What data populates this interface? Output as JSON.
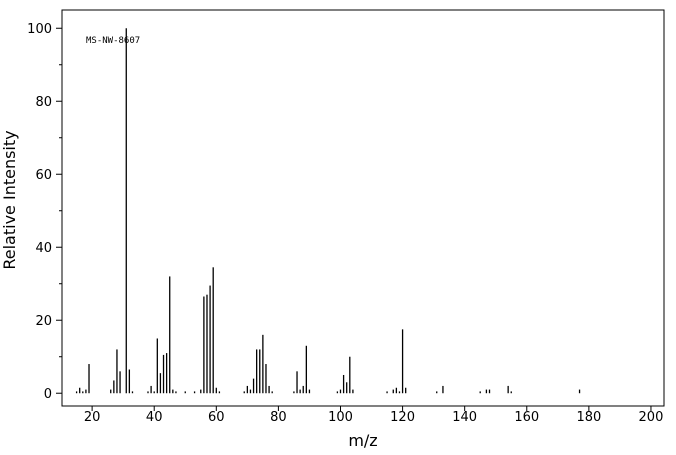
{
  "chart_data": {
    "type": "bar",
    "annotation": "MS-NW-8607",
    "xlabel": "m/z",
    "ylabel": "Relative Intensity",
    "color": "#000000",
    "x": [
      15,
      16,
      17,
      18,
      19,
      26,
      27,
      28,
      29,
      31,
      32,
      33,
      38,
      39,
      40,
      41,
      42,
      43,
      44,
      45,
      46,
      47,
      50,
      53,
      55,
      56,
      57,
      58,
      59,
      60,
      61,
      69,
      70,
      71,
      72,
      73,
      74,
      75,
      76,
      77,
      78,
      85,
      86,
      87,
      88,
      89,
      90,
      99,
      100,
      101,
      102,
      103,
      104,
      115,
      117,
      118,
      119,
      120,
      121,
      131,
      133,
      145,
      147,
      148,
      154,
      155,
      177
    ],
    "values": [
      0.5,
      1.5,
      0.5,
      1,
      8,
      1,
      3.5,
      12,
      6,
      100,
      6.5,
      0.5,
      0.5,
      2,
      0.5,
      15,
      5.5,
      10.5,
      11,
      32,
      1,
      0.5,
      0.5,
      0.5,
      1,
      26.5,
      27,
      29.5,
      34.5,
      1.5,
      0.5,
      0.5,
      2,
      1,
      4,
      12,
      12,
      16,
      8,
      2,
      0.5,
      0.5,
      6,
      1,
      2,
      13,
      1,
      0.5,
      1,
      5,
      3,
      10,
      1,
      0.5,
      1,
      1.5,
      0.5,
      17.5,
      1.5,
      0.5,
      2,
      0.5,
      1,
      1,
      2,
      0.5,
      1
    ],
    "xlim": [
      10.3,
      204.2
    ],
    "ylim": [
      -3.5,
      105
    ],
    "xticks": [
      20,
      40,
      60,
      80,
      100,
      120,
      140,
      160,
      180,
      200
    ],
    "yticks": [
      0,
      20,
      40,
      60,
      80,
      100
    ],
    "yminorticks": [
      10,
      30,
      50,
      70,
      90
    ]
  }
}
